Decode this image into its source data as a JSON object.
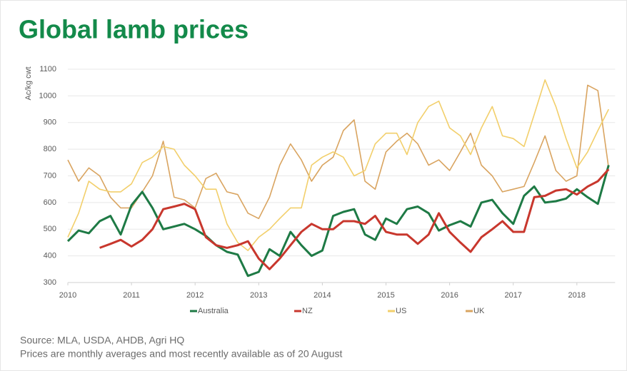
{
  "chart_data": {
    "type": "line",
    "title": "Global lamb prices",
    "y_label": "Ac/kg cwt",
    "source": "Source: MLA, USDA, AHDB, Agri HQ",
    "note": "Prices are monthly averages and most recently available as of 20 August",
    "x": [
      2010,
      2010.17,
      2010.33,
      2010.5,
      2010.67,
      2010.83,
      2011,
      2011.17,
      2011.33,
      2011.5,
      2011.67,
      2011.83,
      2012,
      2012.17,
      2012.33,
      2012.5,
      2012.67,
      2012.83,
      2013,
      2013.17,
      2013.33,
      2013.5,
      2013.67,
      2013.83,
      2014,
      2014.17,
      2014.33,
      2014.5,
      2014.67,
      2014.83,
      2015,
      2015.17,
      2015.33,
      2015.5,
      2015.67,
      2015.83,
      2016,
      2016.17,
      2016.33,
      2016.5,
      2016.67,
      2016.83,
      2017,
      2017.17,
      2017.33,
      2017.5,
      2017.67,
      2017.83,
      2018,
      2018.17,
      2018.33,
      2018.5
    ],
    "series": [
      {
        "name": "Australia",
        "color": "#1e7a45",
        "values": [
          455,
          495,
          485,
          530,
          550,
          480,
          590,
          640,
          580,
          500,
          510,
          520,
          500,
          475,
          440,
          415,
          405,
          325,
          340,
          425,
          400,
          490,
          440,
          400,
          420,
          550,
          565,
          575,
          480,
          460,
          540,
          520,
          575,
          585,
          560,
          495,
          515,
          530,
          510,
          600,
          610,
          560,
          520,
          625,
          660,
          600,
          605,
          615,
          650,
          620,
          595,
          740
        ]
      },
      {
        "name": "NZ",
        "color": "#c8372d",
        "values": [
          null,
          null,
          null,
          430,
          445,
          460,
          435,
          460,
          500,
          575,
          585,
          595,
          575,
          470,
          440,
          430,
          440,
          455,
          390,
          350,
          390,
          440,
          490,
          520,
          500,
          500,
          530,
          530,
          520,
          550,
          490,
          480,
          480,
          445,
          480,
          560,
          490,
          450,
          415,
          470,
          500,
          530,
          490,
          490,
          620,
          625,
          645,
          650,
          630,
          660,
          680,
          725
        ]
      },
      {
        "name": "US",
        "color": "#f2cf6b",
        "values": [
          470,
          560,
          680,
          650,
          640,
          640,
          670,
          750,
          770,
          810,
          800,
          740,
          700,
          650,
          650,
          520,
          450,
          420,
          470,
          500,
          540,
          580,
          580,
          740,
          770,
          790,
          770,
          700,
          720,
          820,
          860,
          860,
          780,
          900,
          960,
          980,
          880,
          850,
          780,
          880,
          960,
          850,
          840,
          810,
          930,
          1060,
          960,
          840,
          730,
          790,
          870,
          950
        ]
      },
      {
        "name": "UK",
        "color": "#d9a460",
        "values": [
          760,
          680,
          730,
          700,
          620,
          580,
          580,
          640,
          700,
          830,
          620,
          610,
          580,
          690,
          710,
          640,
          630,
          560,
          540,
          620,
          740,
          820,
          760,
          680,
          740,
          770,
          870,
          910,
          680,
          650,
          790,
          830,
          860,
          820,
          740,
          760,
          720,
          790,
          860,
          740,
          700,
          640,
          650,
          660,
          750,
          850,
          720,
          680,
          700,
          1040,
          1020,
          730
        ]
      }
    ],
    "xlim": [
      2010,
      2018.6
    ],
    "xticks": [
      2010,
      2011,
      2012,
      2013,
      2014,
      2015,
      2016,
      2017,
      2018
    ],
    "ylim": [
      300,
      1100
    ],
    "yticks": [
      300,
      400,
      500,
      600,
      700,
      800,
      900,
      1000,
      1100
    ],
    "grid": true
  }
}
